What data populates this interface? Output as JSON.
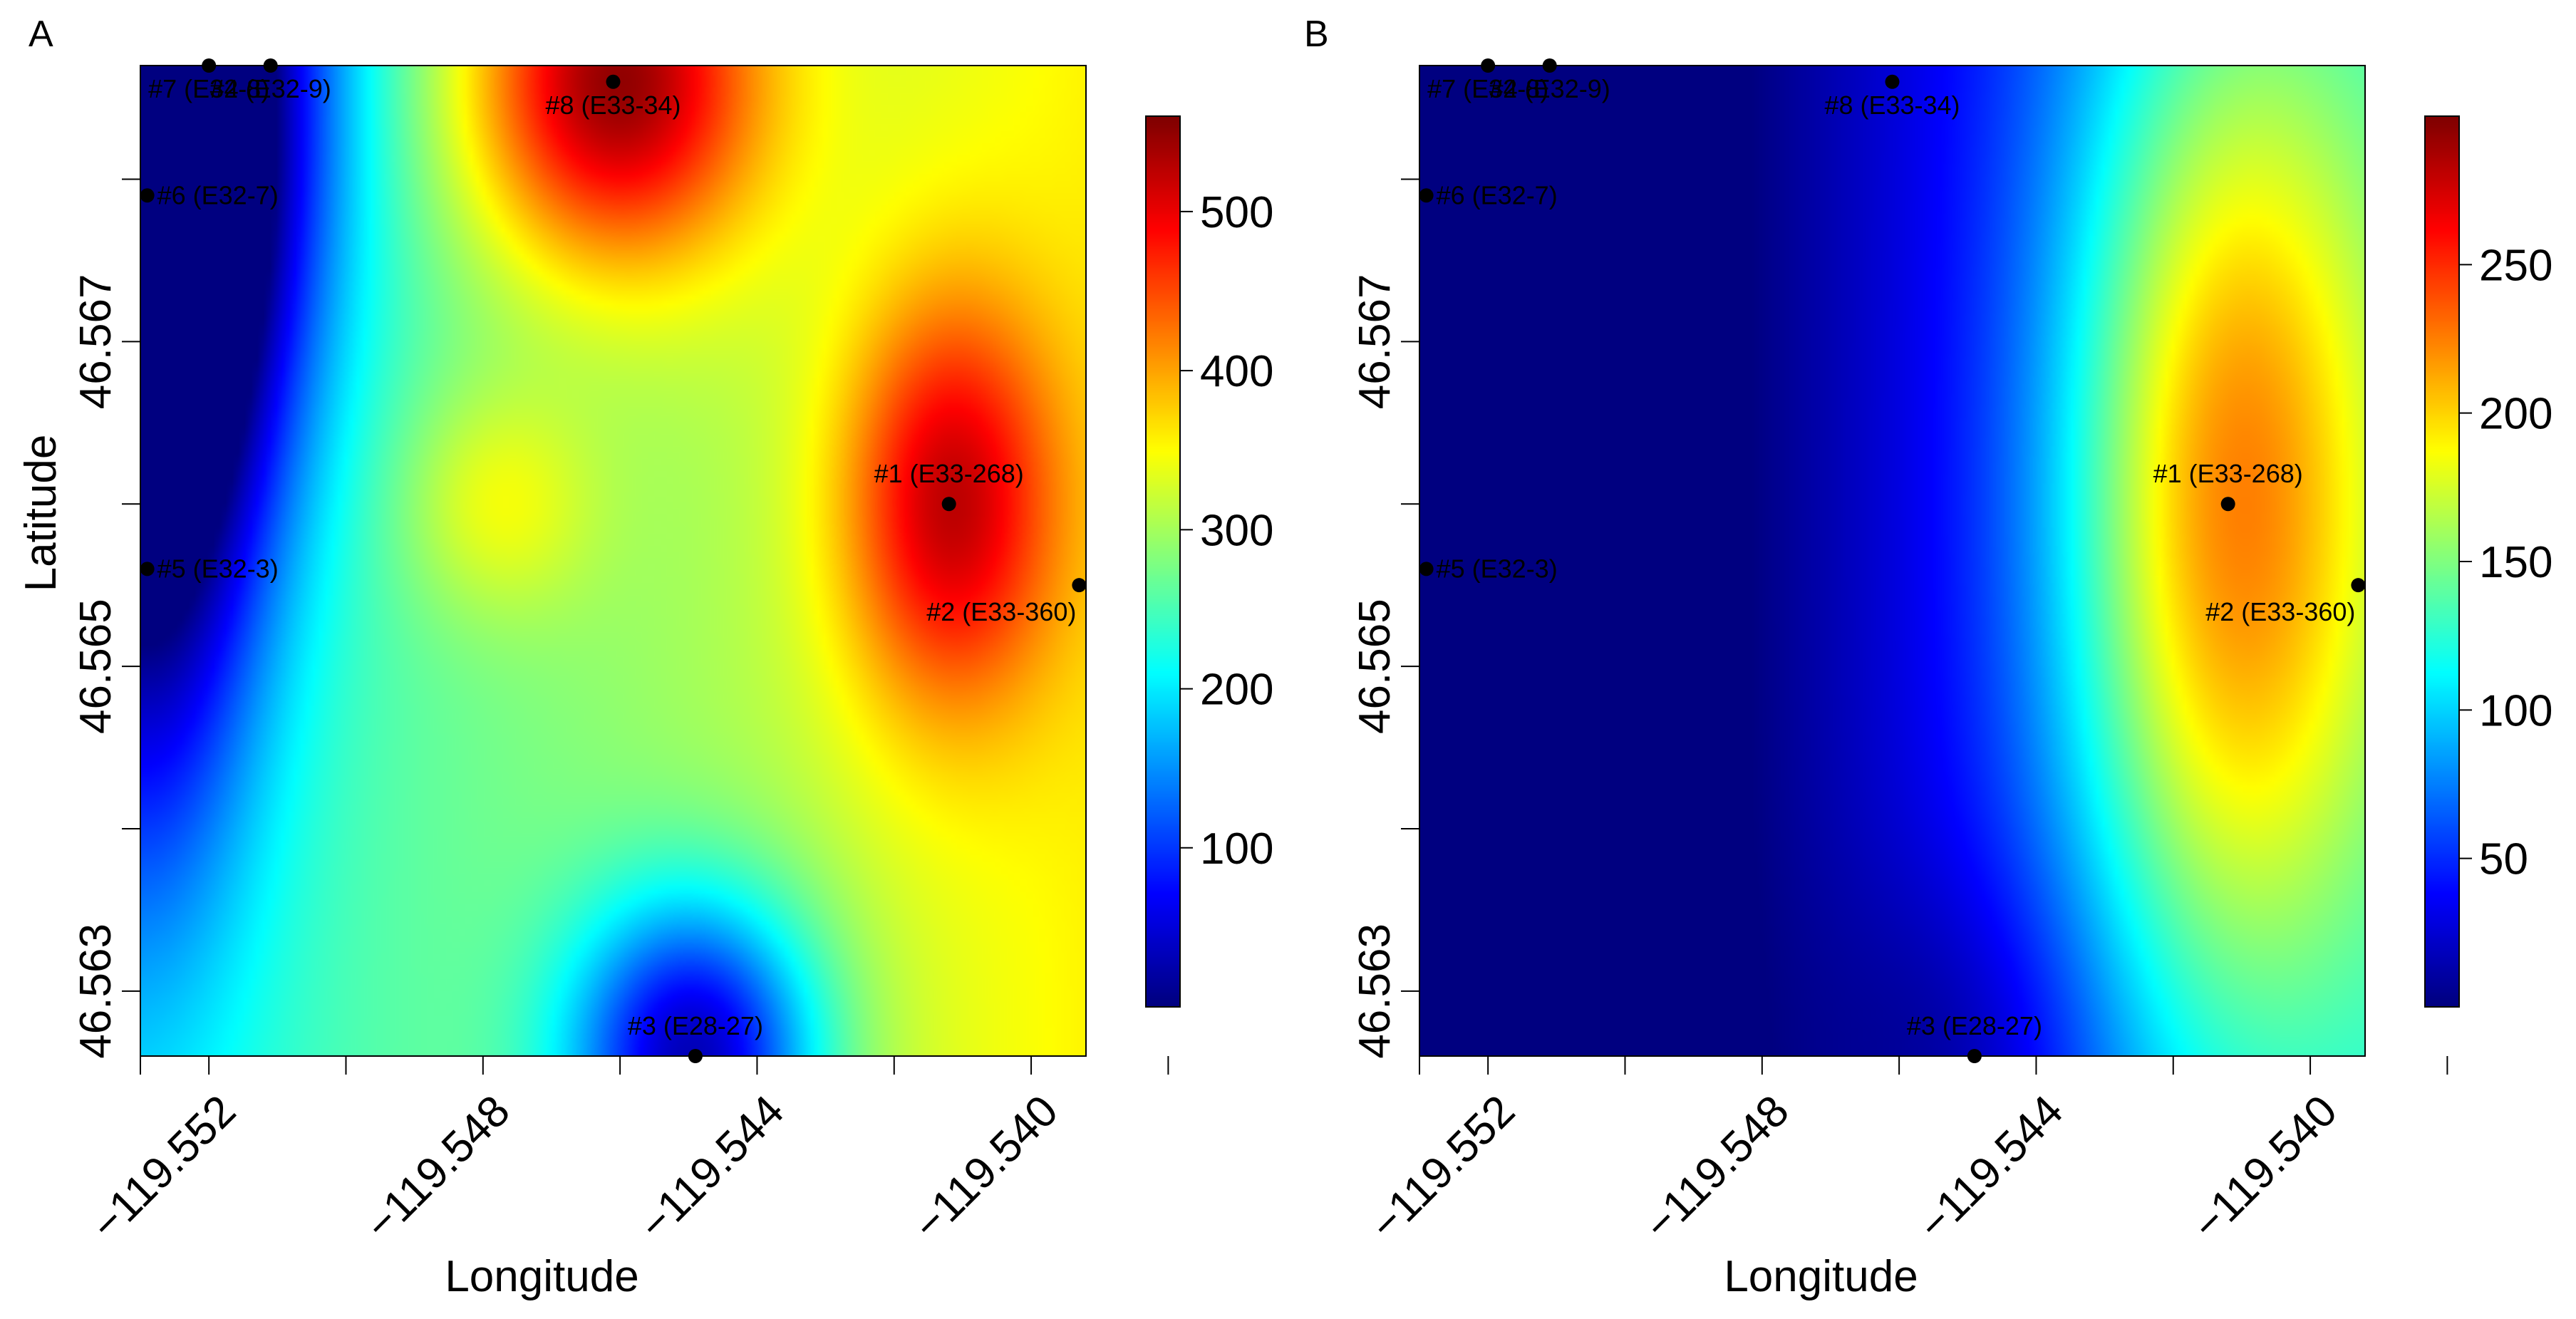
{
  "chart_data": [
    {
      "type": "heatmap",
      "panel_label": "A",
      "xlabel": "Longitude",
      "ylabel": "Latitude",
      "xlim": [
        -119.553,
        -119.5392
      ],
      "ylim": [
        46.5626,
        46.5687
      ],
      "x_ticks": [
        -119.553,
        -119.552,
        -119.55,
        -119.548,
        -119.546,
        -119.544,
        -119.542,
        -119.54,
        -119.538
      ],
      "x_tick_labels": [
        {
          "value": -119.552,
          "label": "−119.552"
        },
        {
          "value": -119.548,
          "label": "−119.548"
        },
        {
          "value": -119.544,
          "label": "−119.544"
        },
        {
          "value": -119.54,
          "label": "−119.540"
        }
      ],
      "y_ticks": [
        46.563,
        46.564,
        46.565,
        46.566,
        46.567,
        46.568
      ],
      "y_tick_labels": [
        {
          "value": 46.563,
          "label": "46.563"
        },
        {
          "value": 46.565,
          "label": "46.565"
        },
        {
          "value": 46.567,
          "label": "46.567"
        }
      ],
      "colorbar": {
        "min": 0,
        "max": 560,
        "tick_values": [
          100,
          200,
          300,
          400,
          500
        ],
        "tick_labels": [
          "100",
          "200",
          "300",
          "400",
          "500"
        ]
      },
      "field": {
        "base": 290,
        "gradient": {
          "dx": 130,
          "dy": 0
        },
        "bumps": [
          {
            "site": "#8",
            "amp": 260,
            "sx": 0.0015,
            "sy": 0.0008
          },
          {
            "site": "#1",
            "amp": 190,
            "sx": 0.0011,
            "sy": 0.0009
          },
          {
            "x": -119.5478,
            "y": 46.566,
            "amp": 70,
            "sx": 0.001,
            "sy": 0.0005
          },
          {
            "site": "#3",
            "amp": -270,
            "sx": 0.0013,
            "sy": 0.0007
          },
          {
            "site": "#7",
            "amp": -230,
            "sx": 0.0014,
            "sy": 0.0018
          },
          {
            "site": "#6",
            "amp": -200,
            "sx": 0.0012,
            "sy": 0.0016
          },
          {
            "site": "#5",
            "amp": -160,
            "sx": 0.0012,
            "sy": 0.0018
          }
        ]
      },
      "sites": [
        {
          "id": "#1",
          "label": "#1 (E33-268)",
          "x": -119.5412,
          "y": 46.566,
          "label_pos": "above"
        },
        {
          "id": "#2",
          "label": "#2 (E33-360)",
          "x": -119.5393,
          "y": 46.5655,
          "label_pos": "below-left"
        },
        {
          "id": "#3",
          "label": "#3 (E28-27)",
          "x": -119.5449,
          "y": 46.5626,
          "label_pos": "above"
        },
        {
          "id": "#4",
          "label": "#4 (E32-9)",
          "x": -119.5511,
          "y": 46.5687,
          "label_pos": "below"
        },
        {
          "id": "#5",
          "label": "#5 (E32-3)",
          "x": -119.5529,
          "y": 46.5656,
          "label_pos": "right"
        },
        {
          "id": "#6",
          "label": "#6 (E32-7)",
          "x": -119.5529,
          "y": 46.5679,
          "label_pos": "right"
        },
        {
          "id": "#7",
          "label": "#7 (E32-8)",
          "x": -119.552,
          "y": 46.5687,
          "label_pos": "below"
        },
        {
          "id": "#8",
          "label": "#8 (E33-34)",
          "x": -119.5461,
          "y": 46.5686,
          "label_pos": "below"
        }
      ]
    },
    {
      "type": "heatmap",
      "panel_label": "B",
      "xlabel": "Longitude",
      "ylabel": "Latitude",
      "xlim": [
        -119.553,
        -119.5392
      ],
      "ylim": [
        46.5626,
        46.5687
      ],
      "x_ticks": [
        -119.553,
        -119.552,
        -119.55,
        -119.548,
        -119.546,
        -119.544,
        -119.542,
        -119.54,
        -119.538
      ],
      "x_tick_labels": [
        {
          "value": -119.552,
          "label": "−119.552"
        },
        {
          "value": -119.548,
          "label": "−119.548"
        },
        {
          "value": -119.544,
          "label": "−119.544"
        },
        {
          "value": -119.54,
          "label": "−119.540"
        }
      ],
      "y_ticks": [
        46.563,
        46.564,
        46.565,
        46.566,
        46.567,
        46.568
      ],
      "y_tick_labels": [
        {
          "value": 46.563,
          "label": "46.563"
        },
        {
          "value": 46.565,
          "label": "46.565"
        },
        {
          "value": 46.567,
          "label": "46.567"
        }
      ],
      "colorbar": {
        "min": 0,
        "max": 300,
        "tick_values": [
          50,
          100,
          150,
          200,
          250
        ],
        "tick_labels": [
          "50",
          "100",
          "150",
          "200",
          "250"
        ]
      },
      "field": {
        "base": 25,
        "gradient": {
          "dx": 165,
          "dy": 0
        },
        "bumps": [
          {
            "site": "#1",
            "amp": 140,
            "sx": 0.0017,
            "sy": 0.0022
          },
          {
            "site": "#3",
            "amp": -25,
            "sx": 0.0015,
            "sy": 0.0008
          }
        ]
      },
      "sites": [
        {
          "id": "#1",
          "label": "#1 (E33-268)",
          "x": -119.5412,
          "y": 46.566,
          "label_pos": "above"
        },
        {
          "id": "#2",
          "label": "#2 (E33-360)",
          "x": -119.5393,
          "y": 46.5655,
          "label_pos": "below-left"
        },
        {
          "id": "#3",
          "label": "#3 (E28-27)",
          "x": -119.5449,
          "y": 46.5626,
          "label_pos": "above"
        },
        {
          "id": "#4",
          "label": "#4 (E32-9)",
          "x": -119.5511,
          "y": 46.5687,
          "label_pos": "below"
        },
        {
          "id": "#5",
          "label": "#5 (E32-3)",
          "x": -119.5529,
          "y": 46.5656,
          "label_pos": "right"
        },
        {
          "id": "#6",
          "label": "#6 (E32-7)",
          "x": -119.5529,
          "y": 46.5679,
          "label_pos": "right"
        },
        {
          "id": "#7",
          "label": "#7 (E32-8)",
          "x": -119.552,
          "y": 46.5687,
          "label_pos": "below"
        },
        {
          "id": "#8",
          "label": "#8 (E33-34)",
          "x": -119.5461,
          "y": 46.5686,
          "label_pos": "below"
        }
      ]
    }
  ]
}
